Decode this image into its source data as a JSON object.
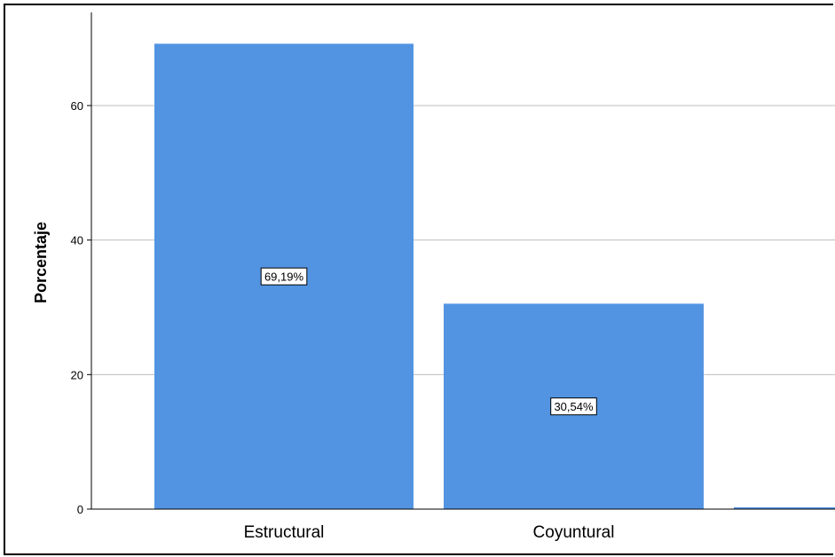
{
  "chart_data": {
    "type": "bar",
    "title": "",
    "xlabel": "",
    "ylabel": "Porcentaje",
    "categories": [
      "Estructural",
      "Coyuntural",
      ""
    ],
    "values": [
      69.19,
      30.54,
      0.27
    ],
    "data_labels": [
      "69,19%",
      "30,54%",
      ""
    ],
    "ylim": [
      0,
      70
    ],
    "yticks": [
      0,
      20,
      40,
      60
    ],
    "grid": true,
    "bar_color": "#5294e2",
    "legend": "none"
  }
}
